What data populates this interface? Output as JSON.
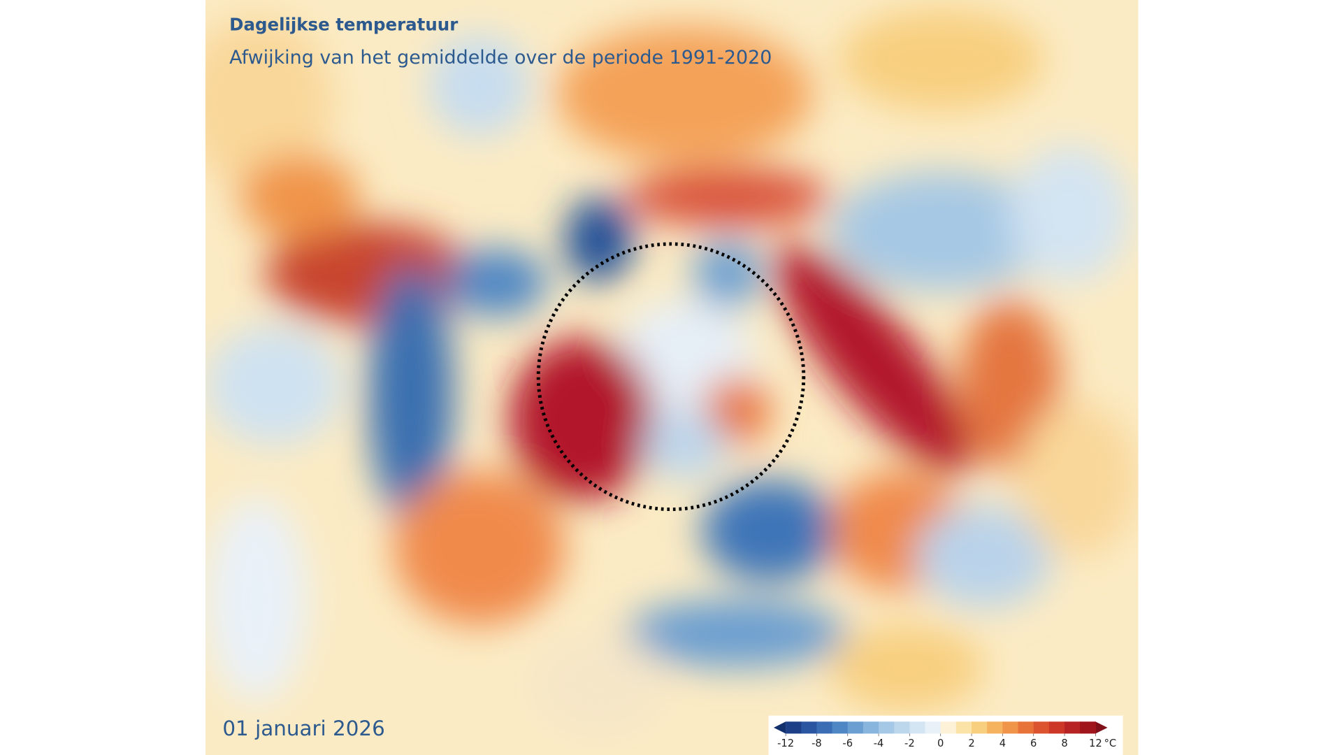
{
  "header": {
    "title": "Dagelijkse temperatuur",
    "subtitle": "Afwijking van het gemiddelde over de periode 1991-2020"
  },
  "date": "01 januari 2026",
  "colorbar": {
    "ticks": [
      -12,
      -8,
      -6,
      -4,
      -2,
      0,
      2,
      4,
      6,
      8,
      12
    ],
    "unit": "°C",
    "colors": [
      "#1d3f87",
      "#2a55a0",
      "#3b6db4",
      "#4f87c4",
      "#6b9fd1",
      "#88b5dd",
      "#a4c8e6",
      "#bcd6ec",
      "#d3e4f2",
      "#e9f1f8",
      "#fdf2d8",
      "#fbe3a8",
      "#f8cf7f",
      "#f5b25f",
      "#f0944a",
      "#e87339",
      "#dc532f",
      "#cc3728",
      "#b72323",
      "#a0141c"
    ],
    "under_color": "#13306e",
    "over_color": "#7f0f18"
  }
}
